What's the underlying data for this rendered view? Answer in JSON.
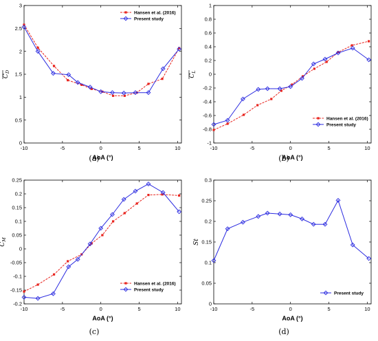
{
  "colors": {
    "hansen": "#e8231d",
    "present": "#2a2ae0"
  },
  "chart_data": [
    {
      "type": "line",
      "caption": "(a)",
      "xlabel": "AoA (°)",
      "ylabel_main": "C",
      "ylabel_sub": "D",
      "xlim": [
        -10,
        10.5
      ],
      "ylim": [
        0,
        3
      ],
      "xticks": [
        -10,
        -5,
        0,
        5,
        10
      ],
      "yticks": [
        0,
        0.5,
        1,
        1.5,
        2,
        2.5,
        3
      ],
      "ytick_labels": [
        "0",
        "0.5",
        "1",
        "1.5",
        "2",
        "2.5",
        "3"
      ],
      "legend": "top-right",
      "series": [
        {
          "name": "Hansen et al. (2016)",
          "style": "hansen",
          "x": [
            -10,
            -8.2,
            -6.1,
            -4.3,
            -2.5,
            -1.2,
            0.2,
            1.6,
            3.1,
            4.7,
            6.2,
            8.0,
            10.2
          ],
          "y": [
            2.58,
            2.08,
            1.68,
            1.37,
            1.27,
            1.18,
            1.12,
            1.03,
            1.03,
            1.1,
            1.29,
            1.4,
            2.07
          ]
        },
        {
          "name": "Present study",
          "style": "present",
          "x": [
            -10,
            -8.2,
            -6.2,
            -4.2,
            -3.0,
            -1.4,
            0,
            1.5,
            3.0,
            4.5,
            6.2,
            8.1,
            10.2
          ],
          "y": [
            2.53,
            2.0,
            1.52,
            1.49,
            1.32,
            1.22,
            1.12,
            1.1,
            1.09,
            1.1,
            1.1,
            1.62,
            2.05
          ]
        }
      ]
    },
    {
      "type": "line",
      "caption": "(b)",
      "xlabel": "AoA (°)",
      "ylabel_main": "C",
      "ylabel_sub": "L",
      "xlim": [
        -10,
        10.5
      ],
      "ylim": [
        -1,
        1
      ],
      "xticks": [
        -10,
        -5,
        0,
        5,
        10
      ],
      "yticks": [
        -1,
        -0.8,
        -0.6,
        -0.4,
        -0.2,
        0,
        0.2,
        0.4,
        0.6,
        0.8,
        1
      ],
      "ytick_labels": [
        "-1",
        "-0.8",
        "-0.6",
        "-0.4",
        "-0.2",
        "0",
        "0.2",
        "0.4",
        "0.6",
        "0.8",
        "1"
      ],
      "legend": "bottom-right",
      "series": [
        {
          "name": "Hansen et al. (2016)",
          "style": "hansen",
          "x": [
            -10,
            -8.2,
            -6.1,
            -4.3,
            -2.5,
            -1.2,
            0.2,
            1.6,
            3.1,
            4.7,
            6.2,
            8.0,
            10.2
          ],
          "y": [
            -0.81,
            -0.72,
            -0.59,
            -0.45,
            -0.36,
            -0.24,
            -0.15,
            -0.03,
            0.08,
            0.18,
            0.32,
            0.42,
            0.48
          ]
        },
        {
          "name": "Present study",
          "style": "present",
          "x": [
            -10,
            -8.2,
            -6.2,
            -4.2,
            -3.0,
            -1.4,
            0,
            1.5,
            3.0,
            4.5,
            6.2,
            8.1,
            10.2
          ],
          "y": [
            -0.73,
            -0.67,
            -0.36,
            -0.22,
            -0.21,
            -0.21,
            -0.18,
            -0.06,
            0.15,
            0.22,
            0.31,
            0.38,
            0.21
          ]
        }
      ]
    },
    {
      "type": "line",
      "caption": "(c)",
      "xlabel": "AoA (°)",
      "ylabel_main": "C",
      "ylabel_sub": "M",
      "xlim": [
        -10,
        10.5
      ],
      "ylim": [
        -0.2,
        0.25
      ],
      "xticks": [
        -10,
        -5,
        0,
        5,
        10
      ],
      "yticks": [
        -0.2,
        -0.15,
        -0.1,
        -0.05,
        0,
        0.05,
        0.1,
        0.15,
        0.2,
        0.25
      ],
      "ytick_labels": [
        "-0.2",
        "-0.15",
        "-0.1",
        "-0.05",
        "0",
        "0.05",
        "0.1",
        "0.15",
        "0.2",
        "0.25"
      ],
      "legend": "bottom-right",
      "series": [
        {
          "name": "Hansen et al. (2016)",
          "style": "hansen",
          "x": [
            -10,
            -8.2,
            -6.1,
            -4.3,
            -2.5,
            -1.2,
            0.2,
            1.6,
            3.1,
            4.7,
            6.2,
            8.0,
            10.2
          ],
          "y": [
            -0.155,
            -0.13,
            -0.093,
            -0.045,
            -0.02,
            0.02,
            0.05,
            0.1,
            0.13,
            0.165,
            0.196,
            0.198,
            0.194
          ]
        },
        {
          "name": "Present study",
          "style": "present",
          "x": [
            -10,
            -8.2,
            -6.2,
            -4.2,
            -3.0,
            -1.4,
            0,
            1.5,
            3.0,
            4.5,
            6.2,
            8.1,
            10.2
          ],
          "y": [
            -0.176,
            -0.18,
            -0.163,
            -0.065,
            -0.038,
            0.018,
            0.075,
            0.125,
            0.18,
            0.21,
            0.236,
            0.205,
            0.135
          ]
        }
      ]
    },
    {
      "type": "line",
      "caption": "(d)",
      "xlabel": "AoA (°)",
      "ylabel_main": "St",
      "ylabel_sub": "",
      "xlim": [
        -10,
        10.5
      ],
      "ylim": [
        0,
        0.3
      ],
      "xticks": [
        -10,
        -5,
        0,
        5,
        10
      ],
      "yticks": [
        0,
        0.05,
        0.1,
        0.15,
        0.2,
        0.25,
        0.3
      ],
      "ytick_labels": [
        "0",
        "0.05",
        "0.1",
        "0.15",
        "0.2",
        "0.25",
        "0.3"
      ],
      "legend": "bottom-right",
      "series": [
        {
          "name": "Present study",
          "style": "present",
          "x": [
            -10,
            -8.2,
            -6.2,
            -4.2,
            -3.0,
            -1.4,
            0,
            1.5,
            3.0,
            4.5,
            6.2,
            8.1,
            10.2
          ],
          "y": [
            0.105,
            0.182,
            0.198,
            0.212,
            0.22,
            0.218,
            0.216,
            0.206,
            0.193,
            0.193,
            0.251,
            0.143,
            0.11
          ]
        }
      ]
    }
  ]
}
